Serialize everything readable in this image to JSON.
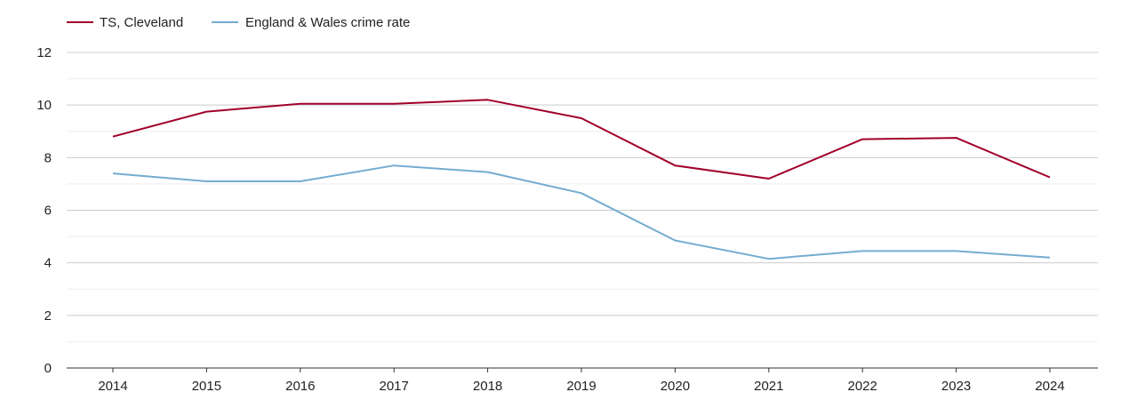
{
  "chart_data": {
    "type": "line",
    "title": "",
    "xlabel": "",
    "ylabel": "",
    "categories": [
      "2014",
      "2015",
      "2016",
      "2017",
      "2018",
      "2019",
      "2020",
      "2021",
      "2022",
      "2023",
      "2024"
    ],
    "ylim": [
      0,
      12
    ],
    "yticks": [
      "0",
      "2",
      "4",
      "6",
      "8",
      "10",
      "12"
    ],
    "grid": true,
    "legend_position": "top-left",
    "series": [
      {
        "name": "TS, Cleveland",
        "color": "#a0002a",
        "values": [
          8.8,
          9.75,
          10.05,
          10.05,
          10.2,
          9.5,
          7.7,
          7.2,
          8.7,
          8.75,
          7.25
        ]
      },
      {
        "name": "England & Wales crime rate",
        "color": "#74acd0",
        "values": [
          7.4,
          7.1,
          7.1,
          7.7,
          7.45,
          6.65,
          4.85,
          4.15,
          4.45,
          4.45,
          4.2
        ]
      }
    ]
  }
}
